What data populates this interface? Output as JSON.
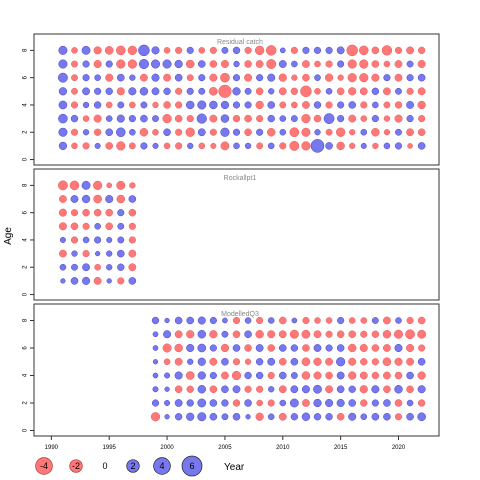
{
  "chart_data": {
    "type": "scatter",
    "ylabel": "Age",
    "xlabel": "Year",
    "x_ticks": [
      1990,
      1995,
      2000,
      2005,
      2010,
      2015,
      2020
    ],
    "y_ticks": [
      0,
      2,
      4,
      6,
      8
    ],
    "xlim": [
      1988.5,
      2023.5
    ],
    "ylim": [
      -0.4,
      9.2
    ],
    "ages": [
      1,
      2,
      3,
      4,
      5,
      6,
      7,
      8
    ],
    "colors": {
      "positive": "#7777ee",
      "negative": "#ff7878",
      "stroke_pos": "#4444cc",
      "stroke_neg": "#e85a5a"
    },
    "legend": [
      {
        "label": "-4",
        "value": -4
      },
      {
        "label": "-2",
        "value": -2
      },
      {
        "label": "0",
        "value": 0
      },
      {
        "label": "2",
        "value": 2
      },
      {
        "label": "4",
        "value": 4
      },
      {
        "label": "6",
        "value": 6
      }
    ],
    "panels": [
      {
        "title": "Residual catch",
        "years": [
          1991,
          1992,
          1993,
          1994,
          1995,
          1996,
          1997,
          1998,
          1999,
          2000,
          2001,
          2002,
          2003,
          2004,
          2005,
          2006,
          2007,
          2008,
          2009,
          2010,
          2011,
          2012,
          2013,
          2014,
          2015,
          2016,
          2017,
          2018,
          2019,
          2020,
          2021,
          2022
        ],
        "rows": [
          [
            1.5,
            -0.8,
            -1.0,
            0.6,
            -1.2,
            -2.0,
            -0.9,
            1.0,
            0.6,
            -0.8,
            -1.0,
            0.7,
            -0.8,
            -0.6,
            -1.8,
            0.8,
            0.7,
            -0.9,
            0.8,
            -1.0,
            -2.4,
            -2.0,
            5.3,
            1.2,
            -1.6,
            -0.7,
            0.6,
            -0.7,
            0.8,
            1.0,
            -0.5,
            1.2
          ],
          [
            1.9,
            -1.0,
            0.7,
            -1.1,
            1.2,
            2.2,
            0.8,
            -1.6,
            -0.8,
            1.2,
            -1.0,
            -2.1,
            1.3,
            -1.0,
            2.0,
            1.0,
            -1.2,
            1.0,
            -1.6,
            0.8,
            -2.3,
            -1.9,
            0.7,
            -0.9,
            -2.1,
            -0.7,
            0.8,
            -1.6,
            -0.7,
            0.9,
            -1.3,
            -1.2
          ],
          [
            2.2,
            1.1,
            -0.8,
            -1.4,
            0.8,
            1.4,
            1.0,
            1.2,
            0.9,
            -2.0,
            -1.2,
            -1.0,
            2.6,
            -1.3,
            1.6,
            -1.1,
            -1.2,
            -1.0,
            1.1,
            0.8,
            0.9,
            -2.0,
            -1.2,
            3.0,
            1.0,
            -1.3,
            -0.8,
            1.0,
            -0.7,
            -1.4,
            1.0,
            -1.0
          ],
          [
            1.7,
            -1.0,
            0.7,
            1.1,
            -0.8,
            0.9,
            -0.8,
            0.9,
            -0.7,
            -1.2,
            -1.0,
            1.6,
            1.9,
            1.6,
            1.5,
            1.0,
            1.0,
            -1.5,
            1.2,
            -0.9,
            -0.8,
            -1.3,
            1.1,
            -1.0,
            1.0,
            1.2,
            -1.0,
            0.8,
            -0.9,
            -1.1,
            1.3,
            -1.5
          ],
          [
            1.5,
            -0.9,
            1.3,
            1.0,
            1.1,
            -1.4,
            1.4,
            1.6,
            1.3,
            1.1,
            -1.0,
            1.0,
            0.9,
            -1.7,
            -4.9,
            1.5,
            0.9,
            -1.2,
            0.7,
            -1.3,
            -1.1,
            -3.5,
            -0.8,
            0.8,
            -1.2,
            -1.5,
            -1.3,
            1.1,
            -1.3,
            0.9,
            -1.0,
            -1.3
          ],
          [
            2.4,
            -0.9,
            1.0,
            0.8,
            -1.4,
            1.2,
            0.7,
            -1.3,
            1.4,
            -1.3,
            1.2,
            -0.9,
            1.0,
            -1.4,
            -2.3,
            1.0,
            -1.4,
            1.0,
            1.4,
            -1.5,
            -0.7,
            -1.2,
            0.8,
            -1.5,
            -0.7,
            -2.0,
            -2.0,
            -1.4,
            1.0,
            -1.3,
            1.0,
            1.2
          ],
          [
            1.9,
            -0.9,
            1.0,
            -1.4,
            1.0,
            -2.0,
            -2.0,
            2.5,
            1.9,
            1.9,
            1.5,
            -1.7,
            1.2,
            -1.2,
            -1.4,
            0.7,
            -1.2,
            -1.3,
            -2.4,
            1.3,
            0.8,
            -1.3,
            -0.8,
            -1.0,
            1.0,
            -2.0,
            -2.0,
            -1.2,
            -0.8,
            -1.3,
            0.9,
            -1.4
          ],
          [
            1.9,
            -0.8,
            1.8,
            -1.4,
            -1.7,
            -2.2,
            -2.1,
            3.5,
            1.4,
            -0.8,
            -1.0,
            1.0,
            -0.8,
            -1.0,
            0.9,
            1.1,
            -1.0,
            -2.1,
            -2.8,
            0.5,
            -1.0,
            1.0,
            1.0,
            1.0,
            1.3,
            -3.5,
            -2.2,
            -1.2,
            -2.7,
            -1.0,
            -1.3,
            -1.1
          ]
        ]
      },
      {
        "title": "Rockallpt1",
        "years": [
          1991,
          1992,
          1993,
          1994,
          1995,
          1996,
          1997
        ],
        "rows": [
          [
            0.4,
            1.2,
            1.4,
            -1.3,
            0.4,
            -1.0,
            1.2
          ],
          [
            0.8,
            0.9,
            1.3,
            -0.8,
            0.7,
            1.1,
            -1.3
          ],
          [
            -1.3,
            0.7,
            -1.0,
            0.4,
            0.7,
            1.2,
            -1.3
          ],
          [
            0.6,
            -1.0,
            0.8,
            1.0,
            0.6,
            0.9,
            -1.0
          ],
          [
            -1.4,
            -1.2,
            -1.0,
            0.8,
            -1.2,
            0.9,
            -1.0
          ],
          [
            -1.4,
            -1.0,
            -1.2,
            -1.2,
            -1.2,
            1.0,
            -1.2
          ],
          [
            -1.3,
            1.3,
            1.5,
            -1.7,
            1.4,
            -1.6,
            1.2
          ],
          [
            -2.4,
            -2.2,
            1.8,
            -2.0,
            -0.5,
            -1.9,
            -0.7
          ]
        ]
      },
      {
        "title": "ModelledQ3",
        "years": [
          1999,
          2000,
          2001,
          2002,
          2003,
          2004,
          2005,
          2006,
          2007,
          2008,
          2009,
          2010,
          2011,
          2012,
          2013,
          2014,
          2015,
          2016,
          2017,
          2018,
          2019,
          2020,
          2021,
          2022
        ],
        "rows": [
          [
            -2.0,
            0.4,
            1.1,
            1.5,
            1.9,
            1.2,
            0.9,
            1.2,
            0.4,
            -1.5,
            0.8,
            -1.3,
            1.1,
            1.6,
            1.1,
            1.1,
            -1.2,
            1.4,
            0.8,
            1.2,
            1.2,
            -1.0,
            1.2,
            1.7
          ],
          [
            1.0,
            0.6,
            1.3,
            1.1,
            1.8,
            1.2,
            1.1,
            -1.1,
            1.2,
            -0.8,
            -1.0,
            0.8,
            1.8,
            -1.3,
            1.5,
            1.4,
            1.4,
            1.2,
            -1.1,
            1.0,
            1.2,
            -1.2,
            0.8,
            -1.1
          ],
          [
            0.6,
            0.4,
            -1.2,
            -1.1,
            1.6,
            -1.2,
            1.2,
            1.3,
            -1.0,
            -1.0,
            0.7,
            -1.3,
            1.3,
            1.4,
            1.8,
            -1.3,
            1.2,
            1.1,
            -1.5,
            1.4,
            -1.2,
            1.6,
            -1.2,
            1.4
          ],
          [
            0.5,
            0.6,
            1.4,
            -1.7,
            1.5,
            1.0,
            -1.3,
            -2.0,
            1.1,
            1.1,
            -1.0,
            1.2,
            0.9,
            -1.6,
            -1.4,
            -1.2,
            1.3,
            -1.5,
            -1.3,
            -1.1,
            -1.3,
            -1.2,
            1.2,
            -1.5
          ],
          [
            0.4,
            -0.8,
            -1.3,
            0.7,
            1.5,
            -1.3,
            1.2,
            -1.0,
            -0.7,
            1.1,
            1.3,
            -1.2,
            1.2,
            -1.7,
            -1.5,
            -1.3,
            2.0,
            -1.4,
            -1.1,
            -1.0,
            -1.7,
            -1.4,
            -1.3,
            1.2
          ],
          [
            0.5,
            -1.9,
            -1.6,
            1.4,
            1.7,
            1.0,
            -1.5,
            1.2,
            -1.2,
            1.3,
            -1.2,
            1.2,
            1.1,
            -1.2,
            1.3,
            1.0,
            1.2,
            -1.6,
            -1.4,
            -1.2,
            -1.3,
            1.4,
            -1.4,
            -1.0
          ],
          [
            0.5,
            1.4,
            -1.3,
            -1.5,
            1.6,
            -1.5,
            0.9,
            -1.2,
            1.2,
            -1.6,
            -1.4,
            -1.3,
            -1.9,
            -1.8,
            -1.3,
            -1.0,
            -1.2,
            -1.2,
            -1.0,
            -1.1,
            -1.6,
            -1.9,
            -2.3,
            -1.8
          ],
          [
            1.1,
            0.4,
            1.2,
            1.2,
            1.4,
            1.0,
            0.5,
            -1.0,
            0.8,
            -1.0,
            0.8,
            -1.2,
            0.5,
            -1.0,
            -0.8,
            -0.8,
            1.0,
            -0.8,
            -0.8,
            0.9,
            -1.3,
            0.8,
            -1.0,
            -1.2
          ]
        ]
      }
    ]
  }
}
